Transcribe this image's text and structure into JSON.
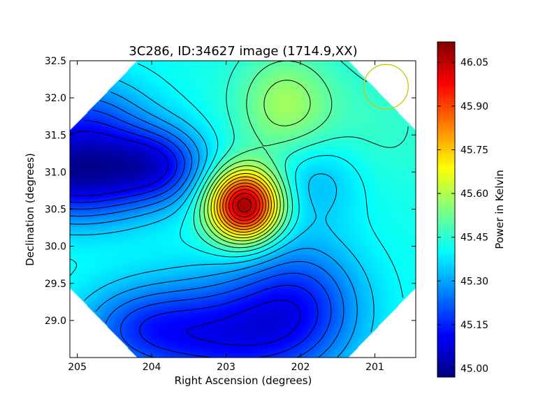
{
  "chart_data": {
    "type": "heatmap",
    "title": "3C286, ID:34627 image (1714.9,XX)",
    "xlabel": "Right Ascension (degrees)",
    "ylabel": "Declination (degrees)",
    "colorbar_label": "Power in Kelvin",
    "xlim": [
      205.1,
      200.45
    ],
    "ylim": [
      28.5,
      32.5
    ],
    "x_ticks": [
      205,
      204,
      203,
      202,
      201
    ],
    "x_tick_labels": [
      "205",
      "204",
      "203",
      "202",
      "201"
    ],
    "y_ticks": [
      29.0,
      29.5,
      30.0,
      30.5,
      31.0,
      31.5,
      32.0,
      32.5
    ],
    "y_tick_labels": [
      "29.0",
      "29.5",
      "30.0",
      "30.5",
      "31.0",
      "31.5",
      "32.0",
      "32.5"
    ],
    "colorbar_range": [
      44.97,
      46.12
    ],
    "colorbar_ticks": [
      45.0,
      45.15,
      45.3,
      45.45,
      45.6,
      45.75,
      45.9,
      46.05
    ],
    "colorbar_tick_labels": [
      "45.00",
      "45.15",
      "45.30",
      "45.45",
      "45.60",
      "45.75",
      "45.90",
      "46.05"
    ],
    "colormap": "jet",
    "background_level": 45.42,
    "field_components": [
      {
        "ra": 202.75,
        "dec": 30.55,
        "amplitude": 0.68,
        "sigma_ra": 0.33,
        "sigma_dec": 0.33
      },
      {
        "ra": 202.2,
        "dec": 31.9,
        "amplitude": 0.16,
        "sigma_ra": 0.45,
        "sigma_dec": 0.5
      },
      {
        "ra": 205.0,
        "dec": 31.0,
        "amplitude": -0.4,
        "sigma_ra": 0.75,
        "sigma_dec": 0.45
      },
      {
        "ra": 203.9,
        "dec": 31.1,
        "amplitude": -0.22,
        "sigma_ra": 0.45,
        "sigma_dec": 0.35
      },
      {
        "ra": 204.9,
        "dec": 31.8,
        "amplitude": -0.15,
        "sigma_ra": 0.6,
        "sigma_dec": 0.4
      },
      {
        "ra": 203.0,
        "dec": 28.8,
        "amplitude": -0.28,
        "sigma_ra": 0.9,
        "sigma_dec": 0.55
      },
      {
        "ra": 202.0,
        "dec": 29.3,
        "amplitude": -0.2,
        "sigma_ra": 0.6,
        "sigma_dec": 0.6
      },
      {
        "ra": 204.2,
        "dec": 28.9,
        "amplitude": -0.15,
        "sigma_ra": 0.6,
        "sigma_dec": 0.4
      },
      {
        "ra": 201.8,
        "dec": 30.9,
        "amplitude": -0.1,
        "sigma_ra": 0.45,
        "sigma_dec": 0.4
      },
      {
        "ra": 201.0,
        "dec": 31.6,
        "amplitude": 0.04,
        "sigma_ra": 0.6,
        "sigma_dec": 0.6
      }
    ],
    "contour_levels": [
      45.1,
      45.15,
      45.2,
      45.25,
      45.3,
      45.35,
      45.4,
      45.45,
      45.5,
      45.55,
      45.6,
      45.65,
      45.7,
      45.75,
      45.8,
      45.85,
      45.9,
      45.95,
      46.0,
      46.05
    ],
    "beam_circle": {
      "ra": 200.85,
      "dec": 32.15,
      "radius_dec": 0.3,
      "color": "#c8c800"
    }
  }
}
